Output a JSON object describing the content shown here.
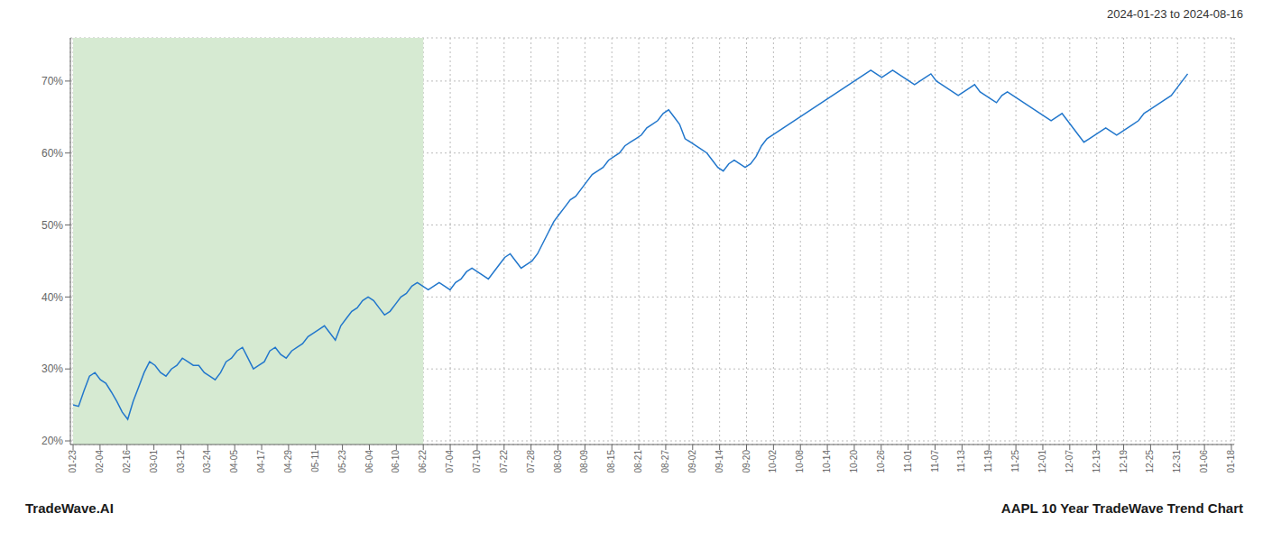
{
  "chart_data": {
    "type": "line",
    "title": "AAPL 10 Year TradeWave Trend Chart",
    "subtitle": "2024-01-23 to 2024-08-16",
    "annotations": [
      "TradeWave.AI"
    ],
    "color": "#2277cc",
    "grid": true,
    "xlim": [
      -0.5,
      212.5
    ],
    "xticks": [
      {
        "value": 0,
        "label": "01-23"
      },
      {
        "value": 4.930233,
        "label": "02-04"
      },
      {
        "value": 9.860465,
        "label": "02-16"
      },
      {
        "value": 14.790698,
        "label": "03-01"
      },
      {
        "value": 19.72093,
        "label": "03-12"
      },
      {
        "value": 24.651163,
        "label": "03-24"
      },
      {
        "value": 29.581395,
        "label": "04-05"
      },
      {
        "value": 34.511628,
        "label": "04-17"
      },
      {
        "value": 39.44186,
        "label": "04-29"
      },
      {
        "value": 44.372093,
        "label": "05-11"
      },
      {
        "value": 49.302326,
        "label": "05-23"
      },
      {
        "value": 54.232558,
        "label": "06-04"
      },
      {
        "value": 59.162791,
        "label": "06-10"
      },
      {
        "value": 64.093023,
        "label": "06-22"
      },
      {
        "value": 69.023256,
        "label": "07-04"
      },
      {
        "value": 73.953488,
        "label": "07-10"
      },
      {
        "value": 78.883721,
        "label": "07-22"
      },
      {
        "value": 83.813953,
        "label": "07-28"
      },
      {
        "value": 88.744186,
        "label": "08-03"
      },
      {
        "value": 93.674419,
        "label": "08-09"
      },
      {
        "value": 98.604651,
        "label": "08-15"
      },
      {
        "value": 103.534884,
        "label": "08-21"
      },
      {
        "value": 108.465116,
        "label": "08-27"
      },
      {
        "value": 113.395349,
        "label": "09-02"
      },
      {
        "value": 118.325581,
        "label": "09-14"
      },
      {
        "value": 123.255814,
        "label": "09-20"
      },
      {
        "value": 128.186047,
        "label": "10-02"
      },
      {
        "value": 133.116279,
        "label": "10-08"
      },
      {
        "value": 138.046512,
        "label": "10-14"
      },
      {
        "value": 142.976744,
        "label": "10-20"
      },
      {
        "value": 147.906977,
        "label": "10-26"
      },
      {
        "value": 152.837209,
        "label": "11-01"
      },
      {
        "value": 157.767442,
        "label": "11-07"
      },
      {
        "value": 162.697674,
        "label": "11-13"
      },
      {
        "value": 167.627907,
        "label": "11-19"
      },
      {
        "value": 172.55814,
        "label": "11-25"
      },
      {
        "value": 177.488372,
        "label": "12-01"
      },
      {
        "value": 182.418605,
        "label": "12-07"
      },
      {
        "value": 187.348837,
        "label": "12-13"
      },
      {
        "value": 192.27907,
        "label": "12-19"
      },
      {
        "value": 197.209302,
        "label": "12-25"
      },
      {
        "value": 202.139535,
        "label": "12-31"
      },
      {
        "value": 207.069767,
        "label": "01-06"
      },
      {
        "value": 212,
        "label": "01-18"
      }
    ],
    "ylim": [
      0.195,
      0.76
    ],
    "yticks": [
      {
        "value": 0.2,
        "label": "20%"
      },
      {
        "value": 0.3,
        "label": "30%"
      },
      {
        "value": 0.4,
        "label": "40%"
      },
      {
        "value": 0.5,
        "label": "50%"
      },
      {
        "value": 0.6,
        "label": "60%"
      },
      {
        "value": 0.7,
        "label": "70%"
      }
    ],
    "shaded_region": {
      "x_start": 0,
      "x_end": 64.093023,
      "color": "#d6ead2"
    },
    "values": [
      0.25,
      0.248,
      0.27,
      0.29,
      0.295,
      0.285,
      0.28,
      0.268,
      0.255,
      0.24,
      0.23,
      0.255,
      0.275,
      0.295,
      0.31,
      0.305,
      0.295,
      0.29,
      0.3,
      0.305,
      0.315,
      0.31,
      0.305,
      0.305,
      0.295,
      0.29,
      0.285,
      0.295,
      0.31,
      0.315,
      0.325,
      0.33,
      0.315,
      0.3,
      0.305,
      0.31,
      0.325,
      0.33,
      0.32,
      0.315,
      0.325,
      0.33,
      0.335,
      0.345,
      0.35,
      0.355,
      0.36,
      0.35,
      0.34,
      0.36,
      0.37,
      0.38,
      0.385,
      0.395,
      0.4,
      0.395,
      0.385,
      0.375,
      0.38,
      0.39,
      0.4,
      0.405,
      0.415,
      0.42,
      0.415,
      0.41,
      0.415,
      0.42,
      0.415,
      0.41,
      0.42,
      0.425,
      0.435,
      0.44,
      0.435,
      0.43,
      0.425,
      0.435,
      0.445,
      0.455,
      0.46,
      0.45,
      0.44,
      0.445,
      0.45,
      0.46,
      0.475,
      0.49,
      0.505,
      0.515,
      0.525,
      0.535,
      0.54,
      0.55,
      0.56,
      0.57,
      0.575,
      0.58,
      0.59,
      0.595,
      0.6,
      0.61,
      0.615,
      0.62,
      0.625,
      0.635,
      0.64,
      0.645,
      0.655,
      0.66,
      0.65,
      0.64,
      0.62,
      0.615,
      0.61,
      0.605,
      0.6,
      0.59,
      0.58,
      0.575,
      0.585,
      0.59,
      0.585,
      0.58,
      0.585,
      0.595,
      0.61,
      0.62,
      0.625,
      0.63,
      0.635,
      0.64,
      0.645,
      0.65,
      0.655,
      0.66,
      0.665,
      0.67,
      0.675,
      0.68,
      0.685,
      0.69,
      0.695,
      0.7,
      0.705,
      0.71,
      0.715,
      0.71,
      0.705,
      0.71,
      0.715,
      0.71,
      0.705,
      0.7,
      0.695,
      0.7,
      0.705,
      0.71,
      0.7,
      0.695,
      0.69,
      0.685,
      0.68,
      0.685,
      0.69,
      0.695,
      0.685,
      0.68,
      0.675,
      0.67,
      0.68,
      0.685,
      0.68,
      0.675,
      0.67,
      0.665,
      0.66,
      0.655,
      0.65,
      0.645,
      0.65,
      0.655,
      0.645,
      0.635,
      0.625,
      0.615,
      0.62,
      0.625,
      0.63,
      0.635,
      0.63,
      0.625,
      0.63,
      0.635,
      0.64,
      0.645,
      0.655,
      0.66,
      0.665,
      0.67,
      0.675,
      0.68,
      0.69,
      0.7,
      0.71
    ]
  }
}
